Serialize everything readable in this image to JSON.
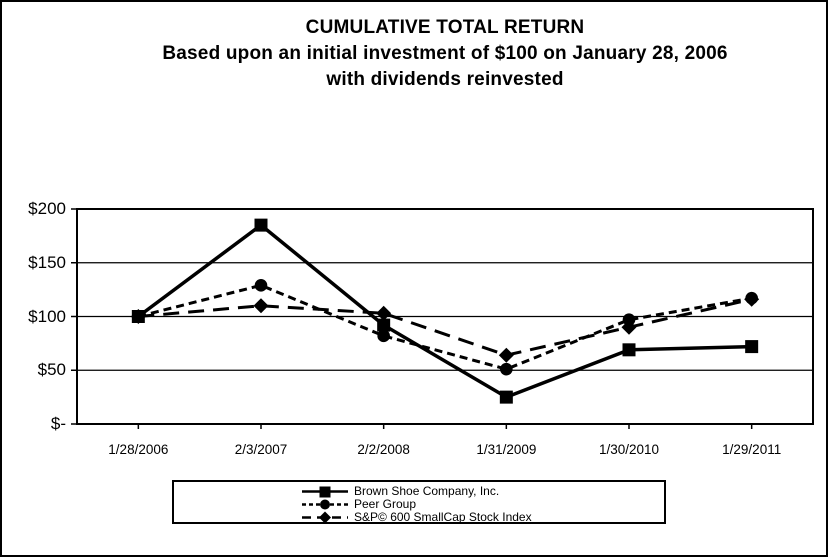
{
  "chart_data": {
    "type": "line",
    "title": "CUMULATIVE TOTAL RETURN",
    "subtitle1": "Based upon an initial investment of $100 on January 28, 2006",
    "subtitle2": "with dividends reinvested",
    "categories": [
      "1/28/2006",
      "2/3/2007",
      "2/2/2008",
      "1/31/2009",
      "1/30/2010",
      "1/29/2011"
    ],
    "series": [
      {
        "name": "Brown Shoe Company, Inc.",
        "marker": "square",
        "line_style": "solid",
        "values": [
          100,
          185,
          92,
          25,
          69,
          72
        ]
      },
      {
        "name": "Peer Group",
        "marker": "circle",
        "line_style": "short-dash",
        "values": [
          100,
          129,
          82,
          51,
          97,
          117
        ]
      },
      {
        "name": "S&P© 600 SmallCap Stock Index",
        "marker": "diamond",
        "line_style": "long-dash",
        "values": [
          100,
          110,
          103,
          64,
          90,
          116
        ]
      }
    ],
    "xlabel": "",
    "ylabel": "",
    "ylim": [
      0,
      200
    ],
    "yticks": [
      0,
      50,
      100,
      150,
      200
    ],
    "ytick_labels": [
      "$-",
      "$50",
      "$100",
      "$150",
      "$200"
    ],
    "grid": "horizontal-only",
    "legend_position": "bottom-center",
    "colors": {
      "line": "#000000",
      "background": "#ffffff",
      "text": "#000000"
    }
  }
}
